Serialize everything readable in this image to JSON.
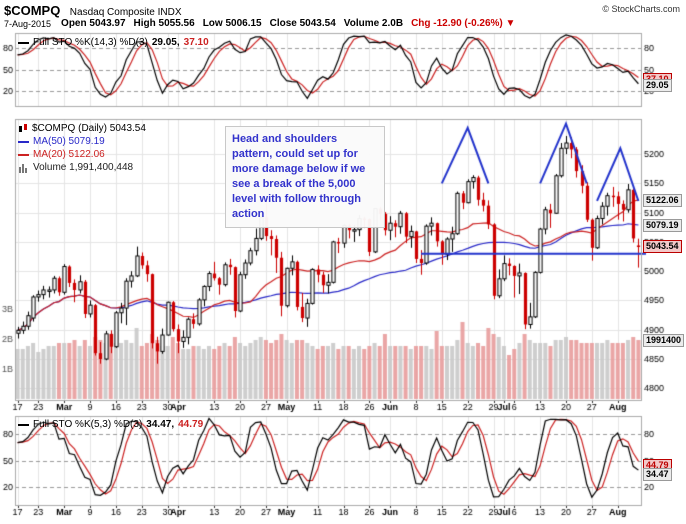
{
  "header": {
    "symbol": "$COMPQ",
    "name": "Nasdaq Composite INDX",
    "copyright": "© StockCharts.com",
    "date": "7-Aug-2015",
    "quote": {
      "segments": [
        "Open 5043.97",
        "High 5055.56",
        "Low 5006.15",
        "Close 5043.54",
        "Volume 2.0B"
      ],
      "chg": "Chg -12.90 (-0.26%) ▼"
    }
  },
  "panels": {
    "sto_top": {
      "legend": "Full STO %K(14,3) %D(3)",
      "k_value": "29.05,",
      "d_value": "37.10",
      "k_flag": "29.05",
      "d_flag": "37.10"
    },
    "main": {
      "title": "$COMPQ (Daily) 5043.54",
      "ma50_label": "MA(50) 5079.19",
      "ma20_label": "MA(20) 5122.06",
      "volume_label": "Volume 1,991,400,448",
      "ma20_flag": "5122.06",
      "ma50_flag": "5079.19",
      "close_flag": "5043.54",
      "volume_flag": "1991400"
    },
    "sto_bottom": {
      "legend": "Full STO %K(5,3) %D(3)",
      "k_value": "34.47,",
      "d_value": "44.79",
      "k_flag": "34.47",
      "d_flag": "44.79"
    }
  },
  "annotation": {
    "text": "Head and shoulders pattern, could set up for more damage below if we see a break of the 5,000 level with follow through action"
  },
  "colors": {
    "up_candle": "#000000",
    "down_candle": "#cc0000",
    "ma20": "#cc2222",
    "ma50": "#2929c8",
    "volume_up": "#c9c9c9",
    "volume_down": "#e89c9c",
    "sto_k": "#000000",
    "sto_d": "#cc2222",
    "drawn_blue": "#2233cc",
    "annotation_text": "#3333cc",
    "negative": "#cc0000",
    "grid": "#e5e5e5",
    "panel_border": "#aaaaaa"
  },
  "chart_data": {
    "type": "candlestick",
    "title": "$COMPQ Nasdaq Composite (Daily), 17-Feb-2015 to 7-Aug-2015",
    "ylim": [
      4780,
      5260
    ],
    "price_axis": [
      5200,
      5150,
      5100,
      5050,
      5000,
      4950,
      4900,
      4850,
      4800
    ],
    "volume_axis": [
      "3B",
      "2B",
      "1B"
    ],
    "osc_gridlines": [
      80,
      50,
      20
    ],
    "x_ticks": [
      [
        "17",
        0
      ],
      [
        "23",
        4
      ],
      [
        "Mar",
        9
      ],
      [
        "9",
        14
      ],
      [
        "16",
        19
      ],
      [
        "23",
        24
      ],
      [
        "30",
        29
      ],
      [
        "Apr",
        31
      ],
      [
        "13",
        38
      ],
      [
        "20",
        43
      ],
      [
        "27",
        48
      ],
      [
        "May",
        52
      ],
      [
        "11",
        58
      ],
      [
        "18",
        63
      ],
      [
        "26",
        68
      ],
      [
        "Jun",
        72
      ],
      [
        "8",
        77
      ],
      [
        "15",
        82
      ],
      [
        "22",
        87
      ],
      [
        "29",
        92
      ],
      [
        "Jul",
        94
      ],
      [
        "6",
        96
      ],
      [
        "13",
        101
      ],
      [
        "20",
        106
      ],
      [
        "27",
        111
      ],
      [
        "Aug",
        116
      ]
    ],
    "candles": [
      [
        4894,
        4905,
        4885,
        4899
      ],
      [
        4899,
        4914,
        4893,
        4906
      ],
      [
        4906,
        4931,
        4900,
        4924
      ],
      [
        4920,
        4959,
        4914,
        4956
      ],
      [
        4956,
        4967,
        4948,
        4960
      ],
      [
        4960,
        4975,
        4952,
        4968
      ],
      [
        4968,
        4974,
        4955,
        4968
      ],
      [
        4968,
        4992,
        4962,
        4988
      ],
      [
        4988,
        4991,
        4958,
        4964
      ],
      [
        4964,
        5012,
        4960,
        5008
      ],
      [
        5008,
        5010,
        4973,
        4980
      ],
      [
        4980,
        4986,
        4947,
        4968
      ],
      [
        4968,
        4993,
        4962,
        4982
      ],
      [
        4982,
        4985,
        4920,
        4927
      ],
      [
        4927,
        4950,
        4921,
        4942
      ],
      [
        4942,
        4944,
        4856,
        4860
      ],
      [
        4860,
        4879,
        4842,
        4850
      ],
      [
        4850,
        4898,
        4848,
        4893
      ],
      [
        4893,
        4899,
        4860,
        4871
      ],
      [
        4871,
        4932,
        4869,
        4929
      ],
      [
        4929,
        4946,
        4911,
        4937
      ],
      [
        4937,
        4988,
        4908,
        4983
      ],
      [
        4983,
        5000,
        4972,
        4992
      ],
      [
        4992,
        5042,
        4990,
        5026
      ],
      [
        5026,
        5032,
        5004,
        5010
      ],
      [
        5010,
        5018,
        4982,
        4995
      ],
      [
        4995,
        4996,
        4868,
        4877
      ],
      [
        4877,
        4888,
        4842,
        4863
      ],
      [
        4863,
        4902,
        4859,
        4891
      ],
      [
        4891,
        4948,
        4890,
        4947
      ],
      [
        4947,
        4949,
        4897,
        4901
      ],
      [
        4901,
        4909,
        4860,
        4880
      ],
      [
        4880,
        4899,
        4869,
        4887
      ],
      [
        4887,
        4921,
        4875,
        4918
      ],
      [
        4918,
        4928,
        4902,
        4910
      ],
      [
        4910,
        4954,
        4907,
        4951
      ],
      [
        4951,
        4976,
        4940,
        4974
      ],
      [
        4974,
        5000,
        4966,
        4996
      ],
      [
        4996,
        5016,
        4984,
        4988
      ],
      [
        4988,
        4990,
        4960,
        4977
      ],
      [
        4977,
        5015,
        4974,
        5011
      ],
      [
        5011,
        5021,
        4994,
        5007
      ],
      [
        5007,
        5008,
        4921,
        4932
      ],
      [
        4932,
        4999,
        4930,
        4994
      ],
      [
        4994,
        5020,
        4987,
        5014
      ],
      [
        5014,
        5040,
        5010,
        5035
      ],
      [
        5035,
        5073,
        5027,
        5056
      ],
      [
        5056,
        5100,
        5053,
        5092
      ],
      [
        5092,
        5119,
        5052,
        5060
      ],
      [
        5060,
        5070,
        5027,
        5055
      ],
      [
        5055,
        5061,
        4997,
        5023
      ],
      [
        5023,
        5033,
        4923,
        4941
      ],
      [
        4941,
        5006,
        4938,
        5005
      ],
      [
        5005,
        5027,
        4993,
        5016
      ],
      [
        5016,
        5018,
        4933,
        4939
      ],
      [
        4939,
        4963,
        4913,
        4920
      ],
      [
        4920,
        4953,
        4905,
        4945
      ],
      [
        4945,
        5005,
        4943,
        5003
      ],
      [
        5003,
        5010,
        4981,
        4994
      ],
      [
        4994,
        4999,
        4963,
        4976
      ],
      [
        4976,
        4995,
        4962,
        4981
      ],
      [
        4981,
        5052,
        4979,
        5050
      ],
      [
        5050,
        5057,
        5031,
        5048
      ],
      [
        5048,
        5080,
        5040,
        5078
      ],
      [
        5078,
        5081,
        5056,
        5070
      ],
      [
        5070,
        5079,
        5050,
        5071
      ],
      [
        5071,
        5096,
        5060,
        5090
      ],
      [
        5090,
        5093,
        5074,
        5089
      ],
      [
        5089,
        5090,
        5026,
        5033
      ],
      [
        5033,
        5108,
        5031,
        5107
      ],
      [
        5107,
        5110,
        5087,
        5098
      ],
      [
        5098,
        5101,
        5061,
        5070
      ],
      [
        5070,
        5094,
        5053,
        5082
      ],
      [
        5082,
        5087,
        5058,
        5076
      ],
      [
        5076,
        5103,
        5064,
        5099
      ],
      [
        5099,
        5101,
        5048,
        5059
      ],
      [
        5059,
        5078,
        5040,
        5068
      ],
      [
        5068,
        5069,
        5014,
        5021
      ],
      [
        5021,
        5036,
        4994,
        5014
      ],
      [
        5014,
        5080,
        5011,
        5077
      ],
      [
        5077,
        5092,
        5061,
        5082
      ],
      [
        5082,
        5083,
        5042,
        5051
      ],
      [
        5051,
        5053,
        5011,
        5029
      ],
      [
        5029,
        5058,
        5019,
        5055
      ],
      [
        5055,
        5076,
        5033,
        5064
      ],
      [
        5064,
        5136,
        5062,
        5133
      ],
      [
        5133,
        5137,
        5106,
        5117
      ],
      [
        5117,
        5157,
        5116,
        5153
      ],
      [
        5153,
        5164,
        5141,
        5160
      ],
      [
        5160,
        5163,
        5112,
        5122
      ],
      [
        5122,
        5134,
        5102,
        5112
      ],
      [
        5112,
        5121,
        5072,
        5080
      ],
      [
        5080,
        5082,
        4952,
        4958
      ],
      [
        4958,
        5003,
        4954,
        4987
      ],
      [
        4987,
        5027,
        4983,
        5013
      ],
      [
        5013,
        5022,
        4993,
        5009
      ],
      [
        5009,
        5010,
        4955,
        4992
      ],
      [
        4992,
        5013,
        4961,
        4997
      ],
      [
        4997,
        4998,
        4901,
        4909
      ],
      [
        4909,
        4946,
        4902,
        4922
      ],
      [
        4922,
        5000,
        4920,
        4998
      ],
      [
        4998,
        5074,
        4996,
        5072
      ],
      [
        5072,
        5110,
        5063,
        5105
      ],
      [
        5105,
        5115,
        5074,
        5099
      ],
      [
        5099,
        5166,
        5098,
        5163
      ],
      [
        5163,
        5219,
        5160,
        5210
      ],
      [
        5210,
        5231,
        5200,
        5219
      ],
      [
        5219,
        5229,
        5193,
        5208
      ],
      [
        5208,
        5212,
        5160,
        5171
      ],
      [
        5171,
        5181,
        5133,
        5146
      ],
      [
        5146,
        5152,
        5084,
        5088
      ],
      [
        5088,
        5090,
        5018,
        5040
      ],
      [
        5040,
        5095,
        5038,
        5090
      ],
      [
        5090,
        5118,
        5080,
        5111
      ],
      [
        5111,
        5134,
        5095,
        5129
      ],
      [
        5129,
        5144,
        5110,
        5128
      ],
      [
        5128,
        5136,
        5088,
        5115
      ],
      [
        5115,
        5121,
        5085,
        5105
      ],
      [
        5105,
        5149,
        5100,
        5139
      ],
      [
        5139,
        5141,
        5049,
        5056
      ],
      [
        5043.97,
        5055.56,
        5006.15,
        5043.54
      ]
    ],
    "volumes_B": [
      1.7,
      1.7,
      1.8,
      1.9,
      1.6,
      1.7,
      1.8,
      1.8,
      1.9,
      1.9,
      1.9,
      2.0,
      1.8,
      2.0,
      1.8,
      2.1,
      2.0,
      1.9,
      2.2,
      1.9,
      1.9,
      2.0,
      1.9,
      2.4,
      1.8,
      1.9,
      2.2,
      2.0,
      1.8,
      1.8,
      2.1,
      1.9,
      1.7,
      1.7,
      1.8,
      1.8,
      1.7,
      1.8,
      1.7,
      1.8,
      1.9,
      1.8,
      2.1,
      1.9,
      1.8,
      1.9,
      2.0,
      2.1,
      2.0,
      1.9,
      2.0,
      2.2,
      2.0,
      1.9,
      2.0,
      2.0,
      1.9,
      1.8,
      1.7,
      1.8,
      1.8,
      1.9,
      1.7,
      1.8,
      1.8,
      1.7,
      1.8,
      1.7,
      1.8,
      1.9,
      1.8,
      2.2,
      1.8,
      1.8,
      1.8,
      1.8,
      1.7,
      1.8,
      1.8,
      1.8,
      1.7,
      2.3,
      1.8,
      1.8,
      1.8,
      2.0,
      2.6,
      1.9,
      1.8,
      1.9,
      1.8,
      2.4,
      2.2,
      2.1,
      1.8,
      1.5,
      1.7,
      1.9,
      2.2,
      2.0,
      1.9,
      1.9,
      1.9,
      1.8,
      2.0,
      2.0,
      2.1,
      2.0,
      2.0,
      1.9,
      1.9,
      1.9,
      1.9,
      1.9,
      2.0,
      1.9,
      1.9,
      1.9,
      2.0,
      2.1,
      2.0
    ],
    "overlays": [
      {
        "name": "MA(20)",
        "period": 20,
        "last": 5122.06
      },
      {
        "name": "MA(50)",
        "period": 50,
        "last": 5079.19
      }
    ],
    "indicators": [
      {
        "name": "Full STO %K(14,3) %D(3)",
        "panel": "top",
        "last_k": 29.05,
        "last_d": 37.1
      },
      {
        "name": "Full STO %K(5,3) %D(3)",
        "panel": "bottom",
        "last_k": 34.47,
        "last_d": 44.79
      }
    ],
    "last_values": {
      "close": 5043.54,
      "ma20": 5122.06,
      "ma50": 5079.19,
      "volume_B": 1.9914,
      "sto14_k": 29.05,
      "sto14_d": 37.1,
      "sto5_k": 34.47,
      "sto5_d": 44.79
    },
    "drawn_shapes": {
      "neckline": {
        "price": 5030,
        "start_index": 78,
        "end_index": 122
      },
      "carets": [
        {
          "points": [
            [
              82,
              5150
            ],
            [
              87,
              5245
            ],
            [
              91,
              5150
            ]
          ]
        },
        {
          "points": [
            [
              101,
              5150
            ],
            [
              106,
              5252
            ],
            [
              110,
              5150
            ]
          ]
        },
        {
          "points": [
            [
              112,
              5120
            ],
            [
              116.5,
              5210
            ],
            [
              120,
              5120
            ]
          ]
        }
      ]
    }
  }
}
